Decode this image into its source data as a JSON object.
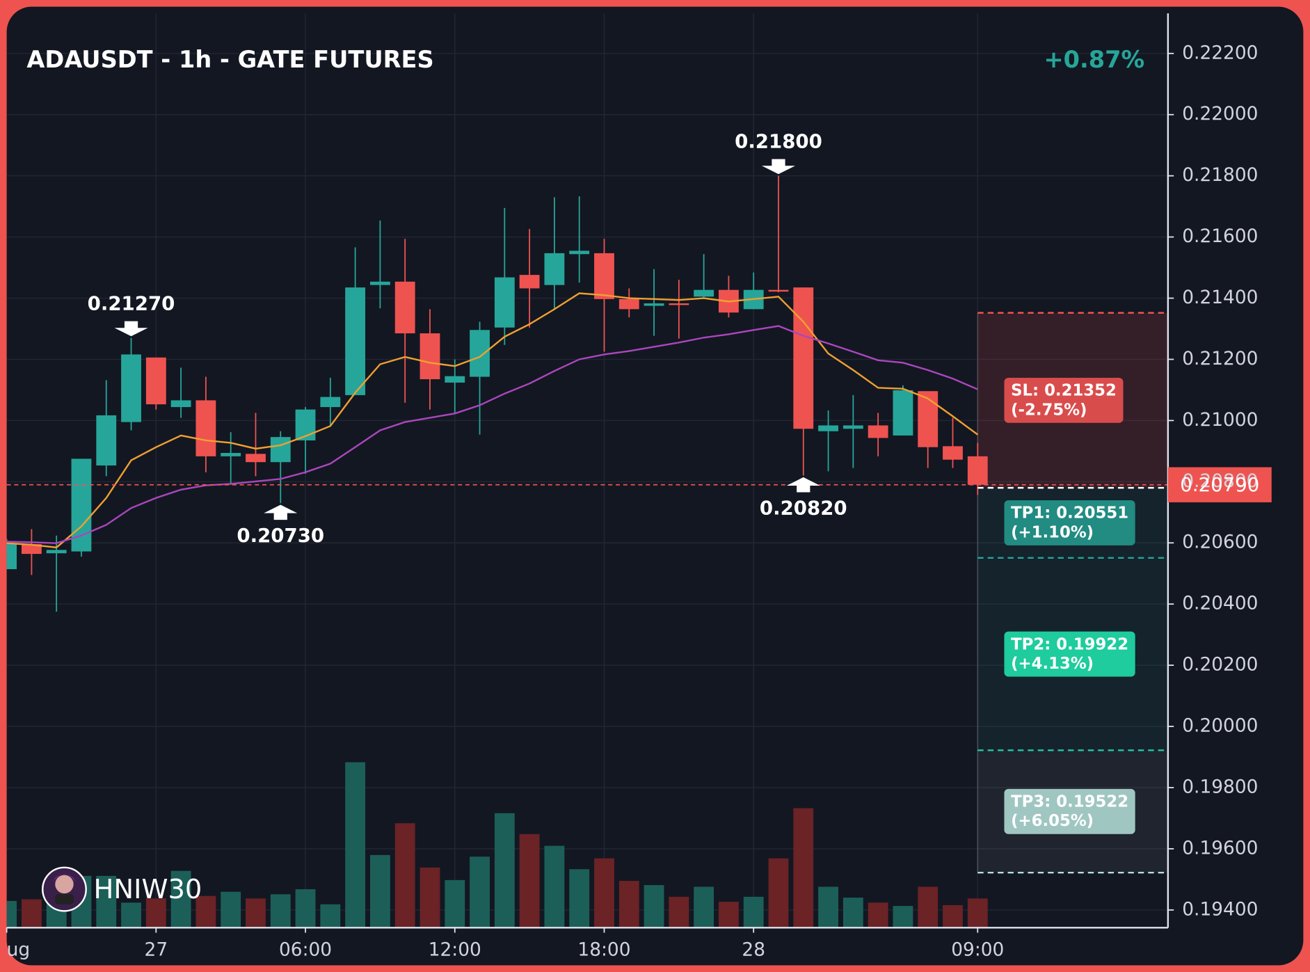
{
  "chart_data": {
    "type": "candlestick",
    "title": "ADAUSDT - 1h - GATE FUTURES",
    "change": "+0.87%",
    "watermark": "HNIW30",
    "categories": [
      "ug",
      null,
      null,
      null,
      null,
      null,
      "27",
      null,
      null,
      null,
      null,
      null,
      "06:00",
      null,
      null,
      null,
      null,
      null,
      "12:00",
      null,
      null,
      null,
      null,
      null,
      "18:00",
      null,
      null,
      null,
      null,
      null,
      "28",
      null,
      null,
      null,
      null,
      null,
      null,
      null,
      null,
      "09:00"
    ],
    "open": [
      0.20514,
      0.20596,
      0.20566,
      0.20572,
      0.20853,
      0.20995,
      0.21206,
      0.21044,
      0.21066,
      0.20883,
      0.20891,
      0.20864,
      0.20935,
      0.21044,
      0.21083,
      0.21443,
      0.21454,
      0.21285,
      0.21124,
      0.21143,
      0.21304,
      0.21476,
      0.21443,
      0.21544,
      0.21547,
      0.21397,
      0.21375,
      0.21383,
      0.21405,
      0.21427,
      0.21364,
      0.21427,
      0.21435,
      0.20965,
      0.20973,
      0.20984,
      0.20951,
      0.21096,
      0.20916,
      0.20883
    ],
    "high": [
      0.20613,
      0.20645,
      0.20624,
      0.20875,
      0.21132,
      0.2127,
      0.21206,
      0.21173,
      0.21143,
      0.20962,
      0.21025,
      0.20965,
      0.21044,
      0.2114,
      0.21566,
      0.21654,
      0.21594,
      0.21364,
      0.212,
      0.21323,
      0.21695,
      0.21626,
      0.2173,
      0.21733,
      0.21594,
      0.21432,
      0.21495,
      0.2146,
      0.21544,
      0.21473,
      0.21484,
      0.218,
      0.21435,
      0.21033,
      0.21083,
      0.21025,
      0.21115,
      0.21096,
      0.21009,
      0.20927
    ],
    "low": [
      0.20514,
      0.20495,
      0.20375,
      0.20555,
      0.20818,
      0.20968,
      0.21036,
      0.21009,
      0.20831,
      0.2079,
      0.20818,
      0.2073,
      0.20826,
      0.20982,
      0.21083,
      0.21367,
      0.21058,
      0.21036,
      0.21025,
      0.20954,
      0.21247,
      0.21304,
      0.21364,
      0.21451,
      0.21225,
      0.21337,
      0.21277,
      0.21268,
      0.21402,
      0.21337,
      0.21364,
      0.21419,
      0.2082,
      0.20834,
      0.20845,
      0.20883,
      0.20951,
      0.20845,
      0.20845,
      0.20757
    ],
    "close": [
      0.20599,
      0.20564,
      0.20577,
      0.20875,
      0.21017,
      0.21216,
      0.21053,
      0.21066,
      0.20883,
      0.20894,
      0.20864,
      0.20946,
      0.21036,
      0.21077,
      0.21435,
      0.21454,
      0.21285,
      0.21135,
      0.21145,
      0.21296,
      0.21468,
      0.21432,
      0.21547,
      0.21555,
      0.21397,
      0.21364,
      0.21383,
      0.2138,
      0.21427,
      0.21353,
      0.21427,
      0.21424,
      0.20973,
      0.20984,
      0.20984,
      0.20943,
      0.21099,
      0.20913,
      0.20872,
      0.2079
    ],
    "up_color": "#26a69a",
    "down_color": "#ef5350",
    "volume": [
      32,
      34,
      30,
      62,
      62,
      30,
      35,
      68,
      38,
      43,
      35,
      40,
      46,
      28,
      198,
      87,
      125,
      72,
      57,
      85,
      137,
      112,
      98,
      70,
      83,
      56,
      51,
      37,
      49,
      31,
      37,
      83,
      143,
      49,
      36,
      30,
      26,
      49,
      27,
      35
    ],
    "volume_up_color": "#1c5f59",
    "volume_down_color": "#6b2326",
    "ma": [
      {
        "color": "#f0a030",
        "values": [
          0.20599,
          0.20594,
          0.20585,
          0.20654,
          0.20747,
          0.2087,
          0.20913,
          0.20951,
          0.20935,
          0.20927,
          0.20908,
          0.20919,
          0.20949,
          0.20982,
          0.21091,
          0.21184,
          0.21208,
          0.21189,
          0.21178,
          0.21208,
          0.21274,
          0.21315,
          0.21364,
          0.21416,
          0.2141,
          0.214,
          0.21397,
          0.21394,
          0.214,
          0.21389,
          0.21397,
          0.21405,
          0.21323,
          0.21219,
          0.21165,
          0.21107,
          0.21104,
          0.21072,
          0.21014,
          0.20954
        ]
      },
      {
        "color": "#ab47bc",
        "values": [
          0.20604,
          0.20602,
          0.20599,
          0.20624,
          0.20659,
          0.20714,
          0.20747,
          0.20774,
          0.20788,
          0.20793,
          0.20801,
          0.20809,
          0.20831,
          0.20859,
          0.20913,
          0.20968,
          0.20995,
          0.21009,
          0.21023,
          0.2105,
          0.21088,
          0.21121,
          0.21162,
          0.212,
          0.21216,
          0.21227,
          0.21241,
          0.21255,
          0.21271,
          0.21282,
          0.21296,
          0.21309,
          0.21277,
          0.21252,
          0.21225,
          0.21197,
          0.21189,
          0.21165,
          0.21137,
          0.21102
        ]
      }
    ],
    "annotations": [
      {
        "index": 5,
        "value": 0.2127,
        "label": "0.21270",
        "position": "above"
      },
      {
        "index": 11,
        "value": 0.2073,
        "label": "0.20730",
        "position": "below"
      },
      {
        "index": 31,
        "value": 0.218,
        "label": "0.21800",
        "position": "above"
      },
      {
        "index": 32,
        "value": 0.2082,
        "label": "0.20820",
        "position": "below"
      }
    ],
    "last_price": {
      "value": 0.2079,
      "label": "0.20790",
      "color": "#ef5350"
    },
    "entry": 0.2078,
    "levels": [
      {
        "label": "SL: 0.21352",
        "value": 0.21352,
        "change": "(-2.75%)",
        "color": "#d94c4c",
        "line_color": "#ef5350"
      },
      {
        "label": "TP1: 0.20551",
        "value": 0.20551,
        "change": "(+1.10%)",
        "color": "#228b82",
        "line_color": "#26a69a"
      },
      {
        "label": "TP2: 0.19922",
        "value": 0.19922,
        "change": "(+4.13%)",
        "color": "#1ecc9d",
        "line_color": "#26c6a6"
      },
      {
        "label": "TP3: 0.19522",
        "value": 0.19522,
        "change": "(+6.05%)",
        "color": "#a0c6c2",
        "line_color": "#b2dfdb"
      }
    ],
    "ylim": [
      0.19342,
      0.22331
    ],
    "yticks": [
      {
        "value": 0.194,
        "label": "0.19400"
      },
      {
        "value": 0.196,
        "label": "0.19600"
      },
      {
        "value": 0.198,
        "label": "0.19800"
      },
      {
        "value": 0.2,
        "label": "0.20000"
      },
      {
        "value": 0.202,
        "label": "0.20200"
      },
      {
        "value": 0.204,
        "label": "0.20400"
      },
      {
        "value": 0.206,
        "label": "0.20600"
      },
      {
        "value": 0.208,
        "label": "0.20800"
      },
      {
        "value": 0.21,
        "label": "0.21000"
      },
      {
        "value": 0.212,
        "label": "0.21200"
      },
      {
        "value": 0.214,
        "label": "0.21400"
      },
      {
        "value": 0.216,
        "label": "0.21600"
      },
      {
        "value": 0.218,
        "label": "0.21800"
      },
      {
        "value": 0.22,
        "label": "0.22000"
      },
      {
        "value": 0.222,
        "label": "0.22200"
      }
    ],
    "grid": true
  }
}
